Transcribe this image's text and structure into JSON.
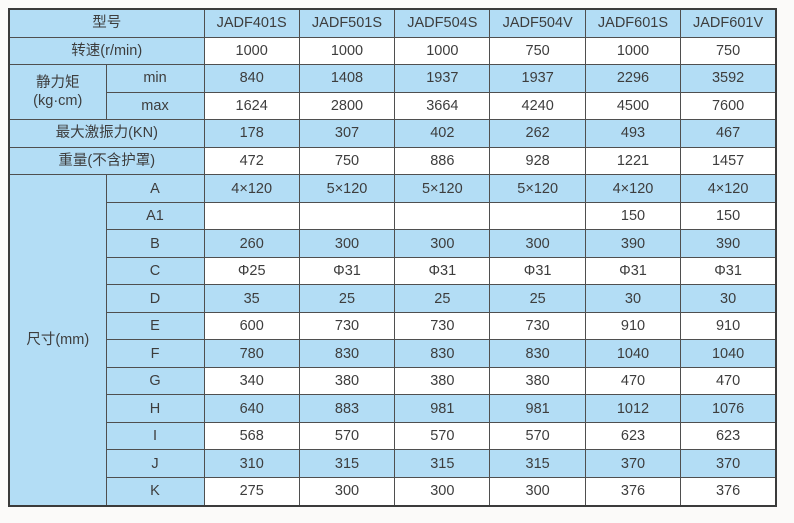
{
  "colors": {
    "cell_blue": "#b3ddf5",
    "cell_white": "#ffffff",
    "grid_line": "#4f4f4f",
    "outer_border": "#3b3b3b",
    "text": "#3d3d3d",
    "page_bg": "#fbfaf9"
  },
  "table": {
    "header": {
      "label": "型号",
      "models": [
        "JADF401S",
        "JADF501S",
        "JADF504S",
        "JADF504V",
        "JADF601S",
        "JADF601V"
      ]
    },
    "rows": [
      {
        "label": "转速(r/min)",
        "values": [
          "1000",
          "1000",
          "1000",
          "750",
          "1000",
          "750"
        ],
        "shade": "light"
      },
      {
        "group": "静力矩\n(kg·cm)",
        "group_rows": 2,
        "sub": "min",
        "values": [
          "840",
          "1408",
          "1937",
          "1937",
          "2296",
          "3592"
        ],
        "shade": "dark"
      },
      {
        "sub": "max",
        "values": [
          "1624",
          "2800",
          "3664",
          "4240",
          "4500",
          "7600"
        ],
        "shade": "light"
      },
      {
        "label": "最大激振力(KN)",
        "values": [
          "178",
          "307",
          "402",
          "262",
          "493",
          "467"
        ],
        "shade": "dark"
      },
      {
        "label": "重量(不含护罩)",
        "values": [
          "472",
          "750",
          "886",
          "928",
          "1221",
          "1457"
        ],
        "shade": "light"
      },
      {
        "group": "尺寸(mm)",
        "group_rows": 12,
        "sub": "A",
        "values": [
          "4×120",
          "5×120",
          "5×120",
          "5×120",
          "4×120",
          "4×120"
        ],
        "shade": "dark"
      },
      {
        "sub": "A1",
        "values": [
          "",
          "",
          "",
          "",
          "150",
          "150"
        ],
        "shade": "light"
      },
      {
        "sub": "B",
        "values": [
          "260",
          "300",
          "300",
          "300",
          "390",
          "390"
        ],
        "shade": "dark"
      },
      {
        "sub": "C",
        "values": [
          "Φ25",
          "Φ31",
          "Φ31",
          "Φ31",
          "Φ31",
          "Φ31"
        ],
        "shade": "light"
      },
      {
        "sub": "D",
        "values": [
          "35",
          "25",
          "25",
          "25",
          "30",
          "30"
        ],
        "shade": "dark"
      },
      {
        "sub": "E",
        "values": [
          "600",
          "730",
          "730",
          "730",
          "910",
          "910"
        ],
        "shade": "light"
      },
      {
        "sub": "F",
        "values": [
          "780",
          "830",
          "830",
          "830",
          "1040",
          "1040"
        ],
        "shade": "dark"
      },
      {
        "sub": "G",
        "values": [
          "340",
          "380",
          "380",
          "380",
          "470",
          "470"
        ],
        "shade": "light"
      },
      {
        "sub": "H",
        "values": [
          "640",
          "883",
          "981",
          "981",
          "1012",
          "1076"
        ],
        "shade": "dark"
      },
      {
        "sub": "I",
        "values": [
          "568",
          "570",
          "570",
          "570",
          "623",
          "623"
        ],
        "shade": "light"
      },
      {
        "sub": "J",
        "values": [
          "310",
          "315",
          "315",
          "315",
          "370",
          "370"
        ],
        "shade": "dark"
      },
      {
        "sub": "K",
        "values": [
          "275",
          "300",
          "300",
          "300",
          "376",
          "376"
        ],
        "shade": "light"
      }
    ]
  }
}
